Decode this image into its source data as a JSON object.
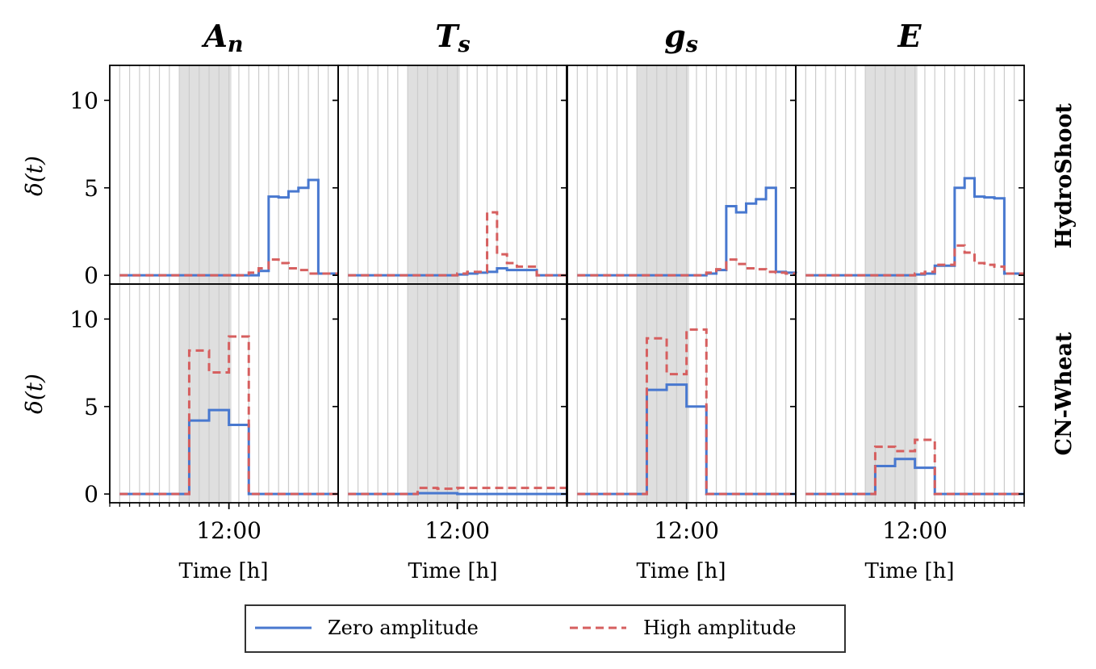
{
  "chart_data": {
    "type": "line",
    "step": "post",
    "columns": [
      "A",
      "T",
      "g",
      "E"
    ],
    "column_subscripts": [
      "n",
      "s",
      "s",
      ""
    ],
    "rows": [
      "HydroShoot",
      "CN-Wheat"
    ],
    "ylabel": "δ(t)",
    "xlabel": "Time [h]",
    "x_tick_label": "12:00",
    "x_range_hours": [
      0,
      23
    ],
    "x_major_tick_hour": 12,
    "ylim": [
      -0.5,
      12
    ],
    "yticks": [
      0,
      5,
      10
    ],
    "grid": "vertical lines every 2 hours",
    "shaded_region_hours": [
      7,
      12.25
    ],
    "legend": {
      "placement": "bottom-center",
      "entries": [
        "Zero amplitude",
        "High amplitude"
      ]
    },
    "series_styles": {
      "zero": {
        "color": "#4878cf",
        "dash": "solid"
      },
      "high": {
        "color": "#d65f5f",
        "dash": "dashed"
      }
    },
    "panels": [
      {
        "row": "HydroShoot",
        "column": "A_n",
        "zero": {
          "x": [
            1,
            15,
            16,
            17,
            18,
            19,
            20,
            21,
            22,
            23
          ],
          "y": [
            0,
            0.25,
            4.5,
            4.45,
            4.8,
            5,
            5.45,
            0.1,
            0.1,
            0.1
          ]
        },
        "high": {
          "x": [
            1,
            14,
            15,
            16,
            17,
            18,
            19,
            20,
            21,
            22,
            23
          ],
          "y": [
            0,
            0.15,
            0.4,
            0.9,
            0.7,
            0.4,
            0.3,
            0.1,
            0.1,
            0.1,
            0.1
          ]
        }
      },
      {
        "row": "HydroShoot",
        "column": "T_s",
        "zero": {
          "x": [
            1,
            12,
            13,
            14,
            15,
            16,
            17,
            18,
            19,
            20,
            21,
            22,
            23
          ],
          "y": [
            0,
            0.05,
            0.1,
            0.15,
            0.2,
            0.4,
            0.3,
            0.3,
            0.3,
            0,
            0,
            0,
            0
          ]
        },
        "high": {
          "x": [
            1,
            12,
            13,
            14,
            15,
            16,
            17,
            18,
            19,
            20,
            21,
            22,
            23
          ],
          "y": [
            0,
            0.1,
            0.2,
            0.2,
            3.6,
            1.2,
            0.7,
            0.5,
            0.5,
            0,
            0,
            0,
            0
          ]
        }
      },
      {
        "row": "HydroShoot",
        "column": "g_s",
        "zero": {
          "x": [
            1,
            14,
            15,
            16,
            17,
            18,
            19,
            20,
            21,
            22,
            23
          ],
          "y": [
            0,
            0.1,
            0.3,
            3.95,
            3.6,
            4.1,
            4.35,
            5,
            0.2,
            0.15,
            0.1
          ]
        },
        "high": {
          "x": [
            1,
            14,
            15,
            16,
            17,
            18,
            19,
            20,
            21,
            22,
            23
          ],
          "y": [
            0,
            0.15,
            0.35,
            0.9,
            0.65,
            0.4,
            0.35,
            0.2,
            0.15,
            0.1,
            0.1
          ]
        }
      },
      {
        "row": "HydroShoot",
        "column": "E",
        "zero": {
          "x": [
            1,
            12,
            13,
            14,
            15,
            16,
            17,
            18,
            19,
            20,
            21,
            22,
            23
          ],
          "y": [
            0,
            0.05,
            0.1,
            0.55,
            0.55,
            5,
            5.55,
            4.5,
            4.45,
            4.4,
            0.1,
            0.1,
            0.1
          ]
        },
        "high": {
          "x": [
            1,
            12,
            13,
            14,
            15,
            16,
            17,
            18,
            19,
            20,
            21,
            22,
            23
          ],
          "y": [
            0,
            0.1,
            0.2,
            0.6,
            0.6,
            1.7,
            1.3,
            0.7,
            0.6,
            0.5,
            0.1,
            0.1,
            0.1
          ]
        }
      },
      {
        "row": "CN-Wheat",
        "column": "A_n",
        "zero": {
          "x": [
            1,
            8,
            10,
            12,
            14,
            23
          ],
          "y": [
            0,
            4.2,
            4.8,
            3.95,
            0,
            0
          ]
        },
        "high": {
          "x": [
            1,
            8,
            10,
            12,
            14,
            23
          ],
          "y": [
            0,
            8.2,
            6.95,
            9,
            0,
            0
          ]
        }
      },
      {
        "row": "CN-Wheat",
        "column": "T_s",
        "zero": {
          "x": [
            1,
            8,
            12,
            23
          ],
          "y": [
            0,
            0.05,
            0,
            0
          ]
        },
        "high": {
          "x": [
            1,
            8,
            10,
            12,
            23
          ],
          "y": [
            0,
            0.35,
            0.3,
            0.35,
            0
          ]
        }
      },
      {
        "row": "CN-Wheat",
        "column": "g_s",
        "zero": {
          "x": [
            1,
            8,
            10,
            12,
            14,
            23
          ],
          "y": [
            0,
            5.95,
            6.25,
            5,
            0,
            0
          ]
        },
        "high": {
          "x": [
            1,
            8,
            10,
            12,
            14,
            23
          ],
          "y": [
            0,
            8.9,
            6.85,
            9.4,
            0,
            0
          ]
        }
      },
      {
        "row": "CN-Wheat",
        "column": "E",
        "zero": {
          "x": [
            1,
            8,
            10,
            12,
            14,
            23
          ],
          "y": [
            0,
            1.6,
            2,
            1.5,
            0,
            0
          ]
        },
        "high": {
          "x": [
            1,
            8,
            10,
            12,
            14,
            23
          ],
          "y": [
            0,
            2.7,
            2.45,
            3.1,
            0,
            0
          ]
        }
      }
    ]
  }
}
